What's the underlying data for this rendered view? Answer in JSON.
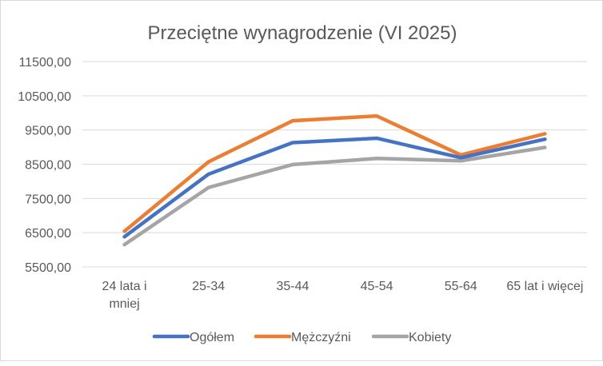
{
  "chart_data": {
    "type": "line",
    "title": "Przeciętne wynagrodzenie (VI 2025)",
    "xlabel": "",
    "ylabel": "",
    "categories": [
      [
        "24 lata i",
        "mniej"
      ],
      [
        "25-34"
      ],
      [
        "35-44"
      ],
      [
        "45-54"
      ],
      [
        "55-64"
      ],
      [
        "65 lat i więcej"
      ]
    ],
    "ylim": [
      5500,
      11500
    ],
    "yticks": [
      5500,
      6500,
      7500,
      8500,
      9500,
      10500,
      11500
    ],
    "ytick_labels": [
      "5500,00",
      "6500,00",
      "7500,00",
      "8500,00",
      "9500,00",
      "10500,00",
      "11500,00"
    ],
    "grid": true,
    "legend_position": "bottom",
    "series": [
      {
        "name": "Ogółem",
        "color": "#4472C4",
        "values": [
          6380,
          8210,
          9130,
          9260,
          8690,
          9230
        ]
      },
      {
        "name": "Mężczyźni",
        "color": "#ED7D31",
        "values": [
          6540,
          8570,
          9770,
          9910,
          8770,
          9390
        ]
      },
      {
        "name": "Kobiety",
        "color": "#A5A5A5",
        "values": [
          6150,
          7820,
          8490,
          8670,
          8600,
          8990
        ]
      }
    ]
  }
}
